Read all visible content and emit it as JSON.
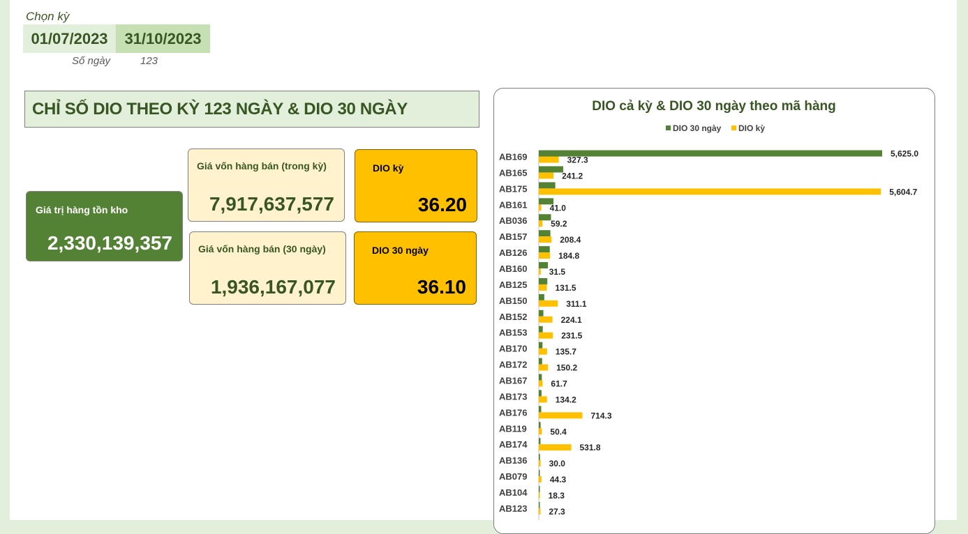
{
  "period": {
    "title": "Chọn kỳ",
    "start": "01/07/2023",
    "end": "31/10/2023",
    "days_label": "Số ngày",
    "days_value": "123"
  },
  "header": {
    "title": "CHỈ SỐ DIO THEO KỲ 123 NGÀY & DIO 30 NGÀY"
  },
  "kpis": {
    "inventory": {
      "label": "Giá trị hàng tồn kho",
      "value": "2,330,139,357"
    },
    "cogs_period": {
      "label": "Giá vốn hàng bán (trong kỳ)",
      "value": "7,917,637,577"
    },
    "cogs_30": {
      "label": "Giá vốn hàng bán (30 ngày)",
      "value": "1,936,167,077"
    },
    "dio_period": {
      "label": "DIO kỳ",
      "value": "36.20"
    },
    "dio_30": {
      "label": "DIO 30 ngày",
      "value": "36.10"
    }
  },
  "colors": {
    "green_dark": "#548235",
    "green_text": "#375623",
    "gold": "#ffc000",
    "pale_green": "#e2efda",
    "cream": "#fff2cc"
  },
  "chart_data": {
    "type": "bar",
    "orientation": "horizontal",
    "title": "DIO cả kỳ & DIO 30 ngày theo mã hàng",
    "legend_position": "top",
    "xlim": [
      0,
      5700
    ],
    "grid": false,
    "categories": [
      "AB169",
      "AB165",
      "AB175",
      "AB161",
      "AB036",
      "AB157",
      "AB126",
      "AB160",
      "AB125",
      "AB150",
      "AB152",
      "AB153",
      "AB170",
      "AB172",
      "AB167",
      "AB173",
      "AB176",
      "AB119",
      "AB174",
      "AB136",
      "AB079",
      "AB104",
      "AB123"
    ],
    "series": [
      {
        "name": "DIO 30 ngày",
        "color": "#548235",
        "values": [
          5625.0,
          400,
          270,
          240,
          200,
          190,
          180,
          150,
          140,
          90,
          75,
          65,
          60,
          55,
          50,
          45,
          40,
          30,
          28,
          20,
          15,
          12,
          10
        ],
        "labels": [
          "5,625.0",
          "",
          "",
          "",
          "",
          "",
          "",
          "",
          "",
          "",
          "",
          "",
          "",
          "",
          "",
          "",
          "",
          "",
          "",
          "",
          "",
          "",
          ""
        ]
      },
      {
        "name": "DIO kỳ",
        "color": "#ffc000",
        "values": [
          327.3,
          241.2,
          5604.7,
          41.0,
          59.2,
          208.4,
          184.8,
          31.5,
          131.5,
          311.1,
          224.1,
          231.5,
          135.7,
          150.2,
          61.7,
          134.2,
          714.3,
          50.4,
          531.8,
          30.0,
          44.3,
          18.3,
          27.3
        ],
        "labels": [
          "327.3",
          "241.2",
          "5,604.7",
          "41.0",
          "59.2",
          "208.4",
          "184.8",
          "31.5",
          "131.5",
          "311.1",
          "224.1",
          "231.5",
          "135.7",
          "150.2",
          "61.7",
          "134.2",
          "714.3",
          "50.4",
          "531.8",
          "30.0",
          "44.3",
          "18.3",
          "27.3"
        ]
      }
    ]
  }
}
